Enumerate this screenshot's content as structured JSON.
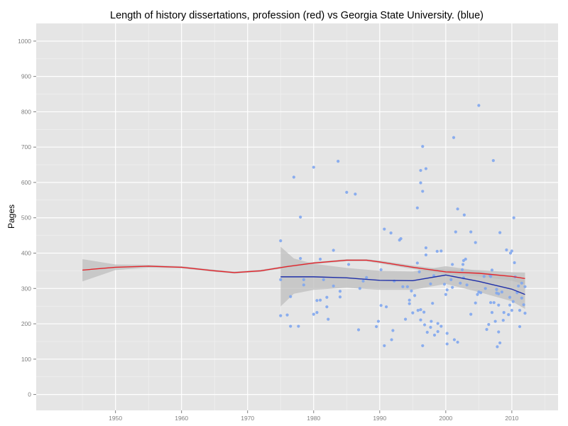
{
  "chart_data": {
    "type": "scatter",
    "title": "Length of history dissertations, profession (red) vs Georgia State University. (blue)",
    "xlabel": "",
    "ylabel": "Pages",
    "xlim": [
      1938,
      2017
    ],
    "ylim": [
      -45,
      1050
    ],
    "x_ticks": [
      1950,
      1960,
      1970,
      1980,
      1990,
      2000,
      2010
    ],
    "y_ticks": [
      0,
      100,
      200,
      300,
      400,
      500,
      600,
      700,
      800,
      900,
      1000
    ],
    "grid": true,
    "legend": "none",
    "colors": {
      "panel_bg": "#e5e5e5",
      "grid_major": "#ffffff",
      "grid_minor": "#f2f2f2",
      "points": "#7fa6ee",
      "profession_line": "#e3242b",
      "gsu_line": "#1f2fa8",
      "ribbon": "#bdbdbd"
    },
    "series": [
      {
        "name": "profession",
        "color": "red",
        "smooth": [
          [
            1945,
            352
          ],
          [
            1950,
            360
          ],
          [
            1955,
            363
          ],
          [
            1960,
            360
          ],
          [
            1965,
            350
          ],
          [
            1968,
            345
          ],
          [
            1972,
            350
          ],
          [
            1976,
            362
          ],
          [
            1980,
            372
          ],
          [
            1985,
            380
          ],
          [
            1988,
            380
          ],
          [
            1990,
            375
          ],
          [
            1995,
            360
          ],
          [
            2000,
            347
          ],
          [
            2005,
            343
          ],
          [
            2010,
            334
          ],
          [
            2012,
            328
          ]
        ],
        "band_upper": [
          [
            1945,
            383
          ],
          [
            1950,
            368
          ],
          [
            1955,
            367
          ],
          [
            1960,
            363
          ],
          [
            1965,
            353
          ],
          [
            1968,
            348
          ],
          [
            1972,
            353
          ],
          [
            1976,
            365
          ],
          [
            1980,
            375
          ],
          [
            1985,
            383
          ],
          [
            1988,
            383
          ],
          [
            1990,
            379
          ],
          [
            1995,
            365
          ],
          [
            2000,
            353
          ],
          [
            2005,
            352
          ],
          [
            2010,
            346
          ],
          [
            2012,
            345
          ]
        ],
        "band_lower": [
          [
            1945,
            320
          ],
          [
            1950,
            352
          ],
          [
            1955,
            359
          ],
          [
            1960,
            357
          ],
          [
            1965,
            347
          ],
          [
            1968,
            342
          ],
          [
            1972,
            347
          ],
          [
            1976,
            359
          ],
          [
            1980,
            369
          ],
          [
            1985,
            377
          ],
          [
            1988,
            377
          ],
          [
            1990,
            371
          ],
          [
            1995,
            355
          ],
          [
            2000,
            341
          ],
          [
            2005,
            334
          ],
          [
            2010,
            322
          ],
          [
            2012,
            311
          ]
        ]
      },
      {
        "name": "Georgia State University",
        "color": "blue",
        "smooth": [
          [
            1975,
            333
          ],
          [
            1980,
            333
          ],
          [
            1985,
            330
          ],
          [
            1990,
            323
          ],
          [
            1995,
            322
          ],
          [
            2000,
            338
          ],
          [
            2005,
            320
          ],
          [
            2010,
            298
          ],
          [
            2012,
            283
          ]
        ],
        "band_upper": [
          [
            1975,
            418
          ],
          [
            1977,
            385
          ],
          [
            1980,
            370
          ],
          [
            1985,
            358
          ],
          [
            1990,
            350
          ],
          [
            1995,
            348
          ],
          [
            2000,
            363
          ],
          [
            2005,
            350
          ],
          [
            2010,
            332
          ],
          [
            2012,
            324
          ]
        ],
        "band_lower": [
          [
            1975,
            249
          ],
          [
            1977,
            285
          ],
          [
            1980,
            296
          ],
          [
            1985,
            302
          ],
          [
            1990,
            296
          ],
          [
            1995,
            296
          ],
          [
            2000,
            313
          ],
          [
            2005,
            290
          ],
          [
            2010,
            264
          ],
          [
            2012,
            242
          ]
        ]
      }
    ],
    "points": [
      [
        1975,
        435
      ],
      [
        1975,
        325
      ],
      [
        1975,
        223
      ],
      [
        1976,
        225
      ],
      [
        1976.5,
        277
      ],
      [
        1976.5,
        193
      ],
      [
        1977,
        615
      ],
      [
        1977.7,
        193
      ],
      [
        1978,
        502
      ],
      [
        1978,
        385
      ],
      [
        1978.5,
        325
      ],
      [
        1978.5,
        310
      ],
      [
        1980,
        643
      ],
      [
        1980,
        227
      ],
      [
        1980.5,
        266
      ],
      [
        1980.5,
        232
      ],
      [
        1981,
        267
      ],
      [
        1981,
        383
      ],
      [
        1981.5,
        325
      ],
      [
        1982,
        275
      ],
      [
        1982,
        248
      ],
      [
        1982.2,
        213
      ],
      [
        1983,
        408
      ],
      [
        1983,
        307
      ],
      [
        1983.7,
        660
      ],
      [
        1984,
        292
      ],
      [
        1984,
        276
      ],
      [
        1985,
        572
      ],
      [
        1985.3,
        368
      ],
      [
        1986.3,
        567
      ],
      [
        1986.8,
        183
      ],
      [
        1987,
        300
      ],
      [
        1987.5,
        321
      ],
      [
        1988,
        331
      ],
      [
        1989.5,
        192
      ],
      [
        1989.8,
        207
      ],
      [
        1990.2,
        353
      ],
      [
        1990.2,
        252
      ],
      [
        1990.7,
        468
      ],
      [
        1990.7,
        138
      ],
      [
        1991,
        248
      ],
      [
        1991.7,
        457
      ],
      [
        1991.8,
        155
      ],
      [
        1992,
        181
      ],
      [
        1992.2,
        321
      ],
      [
        1993,
        437
      ],
      [
        1993.2,
        441
      ],
      [
        1993.5,
        305
      ],
      [
        1993.9,
        213
      ],
      [
        1994.2,
        305
      ],
      [
        1994.5,
        267
      ],
      [
        1994.5,
        257
      ],
      [
        1994.8,
        293
      ],
      [
        1995,
        231
      ],
      [
        1995.3,
        280
      ],
      [
        1995.7,
        528
      ],
      [
        1995.7,
        372
      ],
      [
        1995.8,
        238
      ],
      [
        1996,
        347
      ],
      [
        1996.2,
        634
      ],
      [
        1996.2,
        599
      ],
      [
        1996.2,
        240
      ],
      [
        1996.2,
        211
      ],
      [
        1996.5,
        702
      ],
      [
        1996.5,
        575
      ],
      [
        1996.5,
        138
      ],
      [
        1996.7,
        233
      ],
      [
        1996.8,
        197
      ],
      [
        1997,
        639
      ],
      [
        1997,
        415
      ],
      [
        1997,
        395
      ],
      [
        1997.2,
        176
      ],
      [
        1997.7,
        313
      ],
      [
        1997.7,
        190
      ],
      [
        1997.8,
        207
      ],
      [
        1998,
        258
      ],
      [
        1998.2,
        336
      ],
      [
        1998.3,
        168
      ],
      [
        1998.7,
        405
      ],
      [
        1998.8,
        178
      ],
      [
        1998.8,
        201
      ],
      [
        1999.3,
        406
      ],
      [
        1999.3,
        193
      ],
      [
        1999.8,
        312
      ],
      [
        2000,
        283
      ],
      [
        2000.2,
        296
      ],
      [
        2000.2,
        173
      ],
      [
        2000.2,
        143
      ],
      [
        2000.8,
        325
      ],
      [
        2001,
        368
      ],
      [
        2001,
        303
      ],
      [
        2001.2,
        727
      ],
      [
        2001.3,
        155
      ],
      [
        2001.5,
        460
      ],
      [
        2001.8,
        525
      ],
      [
        2001.8,
        148
      ],
      [
        2002.2,
        315
      ],
      [
        2002.5,
        353
      ],
      [
        2002.6,
        368
      ],
      [
        2002.7,
        379
      ],
      [
        2002.7,
        330
      ],
      [
        2002.8,
        508
      ],
      [
        2003,
        383
      ],
      [
        2003.2,
        310
      ],
      [
        2003.8,
        460
      ],
      [
        2003.8,
        227
      ],
      [
        2004.5,
        430
      ],
      [
        2004.5,
        259
      ],
      [
        2004.8,
        283
      ],
      [
        2005,
        290
      ],
      [
        2005,
        818
      ],
      [
        2005.3,
        288
      ],
      [
        2005.8,
        334
      ],
      [
        2006,
        300
      ],
      [
        2006.2,
        184
      ],
      [
        2006.5,
        198
      ],
      [
        2006.7,
        337
      ],
      [
        2006.8,
        334
      ],
      [
        2006.8,
        260
      ],
      [
        2007,
        352
      ],
      [
        2007,
        232
      ],
      [
        2007.2,
        662
      ],
      [
        2007.3,
        260
      ],
      [
        2007.5,
        207
      ],
      [
        2007.7,
        297
      ],
      [
        2007.7,
        287
      ],
      [
        2007.8,
        135
      ],
      [
        2008,
        285
      ],
      [
        2008,
        253
      ],
      [
        2008,
        177
      ],
      [
        2008.2,
        146
      ],
      [
        2008.2,
        458
      ],
      [
        2008.5,
        290
      ],
      [
        2008.7,
        210
      ],
      [
        2008.8,
        232
      ],
      [
        2009.2,
        409
      ],
      [
        2009.5,
        226
      ],
      [
        2009.7,
        275
      ],
      [
        2009.7,
        253
      ],
      [
        2009.8,
        400
      ],
      [
        2010,
        406
      ],
      [
        2010,
        238
      ],
      [
        2010.2,
        263
      ],
      [
        2010.3,
        500
      ],
      [
        2010.4,
        373
      ],
      [
        2010.5,
        333
      ],
      [
        2010.8,
        288
      ],
      [
        2011,
        307
      ],
      [
        2011.2,
        238
      ],
      [
        2011.2,
        192
      ],
      [
        2011.5,
        315
      ],
      [
        2011.5,
        273
      ],
      [
        2011.8,
        254
      ],
      [
        2012,
        230
      ],
      [
        2012,
        305
      ]
    ]
  }
}
